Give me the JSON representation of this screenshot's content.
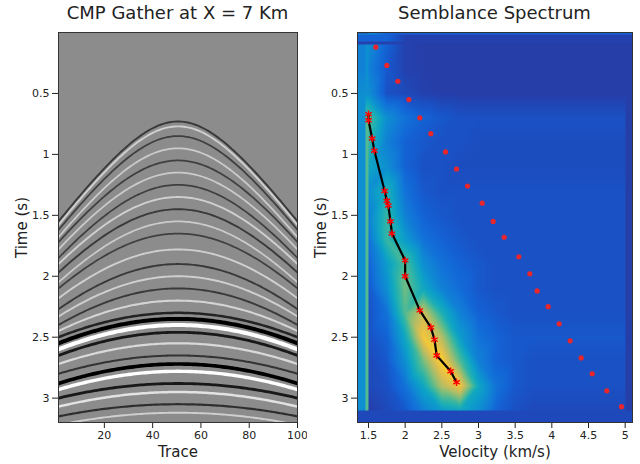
{
  "chart_data": [
    {
      "type": "gather",
      "title": "CMP Gather at X = 7 Km",
      "x_label": "Trace",
      "y_label": "Time (s)",
      "xlim": [
        1,
        100
      ],
      "xticks": [
        20,
        40,
        60,
        80,
        100
      ],
      "ylim": [
        0,
        3.2
      ],
      "yticks": [
        0.5,
        1,
        1.5,
        2,
        2.5,
        3
      ],
      "apex_trace": 50.5,
      "edge_trace": 1,
      "events": [
        {
          "t0": 0.73,
          "t_edge": 1.55,
          "amplitude": -0.3
        },
        {
          "t0": 0.77,
          "t_edge": 1.58,
          "amplitude": 0.3
        },
        {
          "t0": 0.85,
          "t_edge": 1.62,
          "amplitude": -0.25
        },
        {
          "t0": 0.95,
          "t_edge": 1.68,
          "amplitude": 0.25
        },
        {
          "t0": 1.05,
          "t_edge": 1.72,
          "amplitude": -0.25
        },
        {
          "t0": 1.15,
          "t_edge": 1.78,
          "amplitude": 0.25
        },
        {
          "t0": 1.25,
          "t_edge": 1.85,
          "amplitude": -0.25
        },
        {
          "t0": 1.35,
          "t_edge": 1.9,
          "amplitude": 0.3
        },
        {
          "t0": 1.45,
          "t_edge": 1.97,
          "amplitude": -0.3
        },
        {
          "t0": 1.55,
          "t_edge": 2.05,
          "amplitude": 0.25
        },
        {
          "t0": 1.65,
          "t_edge": 2.1,
          "amplitude": -0.25
        },
        {
          "t0": 1.78,
          "t_edge": 2.18,
          "amplitude": 0.3
        },
        {
          "t0": 1.9,
          "t_edge": 2.27,
          "amplitude": -0.3
        },
        {
          "t0": 2.0,
          "t_edge": 2.33,
          "amplitude": 0.3
        },
        {
          "t0": 2.1,
          "t_edge": 2.4,
          "amplitude": -0.3
        },
        {
          "t0": 2.2,
          "t_edge": 2.45,
          "amplitude": 0.35
        },
        {
          "t0": 2.3,
          "t_edge": 2.5,
          "amplitude": -0.5
        },
        {
          "t0": 2.35,
          "t_edge": 2.55,
          "amplitude": -1
        },
        {
          "t0": 2.4,
          "t_edge": 2.6,
          "amplitude": 1
        },
        {
          "t0": 2.46,
          "t_edge": 2.65,
          "amplitude": -0.6
        },
        {
          "t0": 2.55,
          "t_edge": 2.72,
          "amplitude": 0.4
        },
        {
          "t0": 2.65,
          "t_edge": 2.8,
          "amplitude": -0.35
        },
        {
          "t0": 2.72,
          "t_edge": 2.88,
          "amplitude": -0.9
        },
        {
          "t0": 2.78,
          "t_edge": 2.93,
          "amplitude": 0.8
        },
        {
          "t0": 2.88,
          "t_edge": 3.0,
          "amplitude": -0.6
        },
        {
          "t0": 2.95,
          "t_edge": 3.07,
          "amplitude": 0.5
        },
        {
          "t0": 3.05,
          "t_edge": 3.15,
          "amplitude": -0.4
        },
        {
          "t0": 3.12,
          "t_edge": 3.22,
          "amplitude": 0.3
        }
      ]
    },
    {
      "type": "heatmap",
      "title": "Semblance Spectrum",
      "x_label": "Velocity (km/s)",
      "y_label": "Time (s)",
      "xlim": [
        1.35,
        5.1
      ],
      "xticks": [
        1.5,
        2,
        2.5,
        3,
        3.5,
        4,
        4.5,
        5
      ],
      "ylim": [
        0,
        3.2
      ],
      "yticks": [
        0.5,
        1,
        1.5,
        2,
        2.5,
        3
      ],
      "semblance_range": [
        0,
        1
      ],
      "semblance": {
        "velocities": [
          1.5,
          1.75,
          2.0,
          2.25,
          2.5,
          2.75,
          3.0,
          3.25,
          3.5,
          3.75,
          4.0,
          4.25,
          4.5,
          4.75,
          5.0
        ],
        "times": [
          0.1,
          0.3,
          0.5,
          0.7,
          0.9,
          1.1,
          1.3,
          1.5,
          1.7,
          1.9,
          2.1,
          2.3,
          2.5,
          2.7,
          2.9,
          3.1
        ],
        "values": [
          [
            0.3,
            0.15,
            0.06,
            0.05,
            0.05,
            0.05,
            0.05,
            0.05,
            0.05,
            0.05,
            0.05,
            0.05,
            0.05,
            0.05,
            0.05
          ],
          [
            0.25,
            0.12,
            0.06,
            0.05,
            0.05,
            0.05,
            0.05,
            0.05,
            0.05,
            0.05,
            0.05,
            0.05,
            0.05,
            0.05,
            0.05
          ],
          [
            0.3,
            0.1,
            0.08,
            0.06,
            0.05,
            0.05,
            0.05,
            0.05,
            0.05,
            0.05,
            0.05,
            0.05,
            0.05,
            0.05,
            0.05
          ],
          [
            0.55,
            0.3,
            0.2,
            0.15,
            0.12,
            0.1,
            0.1,
            0.1,
            0.1,
            0.1,
            0.1,
            0.1,
            0.1,
            0.1,
            0.1
          ],
          [
            0.5,
            0.25,
            0.15,
            0.12,
            0.1,
            0.1,
            0.09,
            0.09,
            0.09,
            0.09,
            0.09,
            0.09,
            0.09,
            0.09,
            0.09
          ],
          [
            0.4,
            0.3,
            0.15,
            0.1,
            0.1,
            0.09,
            0.09,
            0.09,
            0.09,
            0.09,
            0.09,
            0.09,
            0.09,
            0.09,
            0.09
          ],
          [
            0.3,
            0.45,
            0.2,
            0.12,
            0.1,
            0.1,
            0.1,
            0.1,
            0.1,
            0.1,
            0.1,
            0.1,
            0.1,
            0.1,
            0.1
          ],
          [
            0.25,
            0.5,
            0.25,
            0.15,
            0.12,
            0.1,
            0.1,
            0.1,
            0.1,
            0.1,
            0.1,
            0.1,
            0.1,
            0.1,
            0.1
          ],
          [
            0.2,
            0.5,
            0.35,
            0.2,
            0.15,
            0.12,
            0.1,
            0.1,
            0.1,
            0.1,
            0.1,
            0.1,
            0.1,
            0.1,
            0.1
          ],
          [
            0.15,
            0.35,
            0.55,
            0.3,
            0.2,
            0.15,
            0.12,
            0.1,
            0.1,
            0.1,
            0.1,
            0.1,
            0.1,
            0.1,
            0.1
          ],
          [
            0.12,
            0.3,
            0.6,
            0.4,
            0.25,
            0.18,
            0.12,
            0.1,
            0.1,
            0.1,
            0.1,
            0.1,
            0.1,
            0.1,
            0.1
          ],
          [
            0.1,
            0.2,
            0.55,
            0.75,
            0.45,
            0.25,
            0.15,
            0.12,
            0.1,
            0.1,
            0.1,
            0.1,
            0.1,
            0.1,
            0.1
          ],
          [
            0.1,
            0.15,
            0.4,
            0.85,
            0.7,
            0.35,
            0.2,
            0.15,
            0.12,
            0.12,
            0.12,
            0.12,
            0.12,
            0.12,
            0.12
          ],
          [
            0.08,
            0.12,
            0.3,
            0.6,
            0.9,
            0.55,
            0.25,
            0.15,
            0.12,
            0.1,
            0.1,
            0.1,
            0.1,
            0.1,
            0.1
          ],
          [
            0.08,
            0.1,
            0.2,
            0.4,
            0.7,
            0.85,
            0.4,
            0.2,
            0.12,
            0.1,
            0.1,
            0.1,
            0.1,
            0.1,
            0.1
          ],
          [
            0.05,
            0.08,
            0.12,
            0.25,
            0.35,
            0.4,
            0.3,
            0.15,
            0.1,
            0.08,
            0.08,
            0.08,
            0.08,
            0.08,
            0.08
          ]
        ]
      },
      "series": [
        {
          "type": "line",
          "color": "#000000",
          "line_style": "solid",
          "velocity": [
            1.5,
            1.5,
            1.55,
            1.58,
            1.72,
            1.75,
            1.77,
            1.8,
            1.82,
            2.0,
            2.0,
            2.2,
            2.35,
            2.4,
            2.43,
            2.62,
            2.7
          ],
          "time": [
            0.67,
            0.72,
            0.87,
            0.97,
            1.3,
            1.38,
            1.42,
            1.55,
            1.65,
            1.87,
            2.0,
            2.28,
            2.42,
            2.52,
            2.65,
            2.78,
            2.87
          ]
        },
        {
          "type": "scatter",
          "color": "#ff0000",
          "marker": "asterisk",
          "velocity": [
            1.5,
            1.5,
            1.55,
            1.58,
            1.72,
            1.75,
            1.77,
            1.8,
            1.82,
            2.0,
            2.0,
            2.2,
            2.35,
            2.4,
            2.43,
            2.62,
            2.7
          ],
          "time": [
            0.67,
            0.72,
            0.87,
            0.97,
            1.3,
            1.38,
            1.42,
            1.55,
            1.65,
            1.87,
            2.0,
            2.28,
            2.42,
            2.52,
            2.65,
            2.78,
            2.87
          ]
        },
        {
          "type": "scatter",
          "color": "#e8262b",
          "marker": "circle",
          "velocity": [
            1.6,
            1.75,
            1.9,
            2.05,
            2.2,
            2.35,
            2.55,
            2.7,
            2.85,
            3.05,
            3.2,
            3.35,
            3.55,
            3.7,
            3.8,
            3.95,
            4.1,
            4.25,
            4.4,
            4.55,
            4.75,
            4.95
          ],
          "time": [
            0.12,
            0.27,
            0.4,
            0.55,
            0.7,
            0.83,
            0.98,
            1.12,
            1.26,
            1.4,
            1.55,
            1.68,
            1.84,
            1.98,
            2.12,
            2.25,
            2.39,
            2.53,
            2.67,
            2.8,
            2.94,
            3.07
          ]
        }
      ]
    }
  ]
}
